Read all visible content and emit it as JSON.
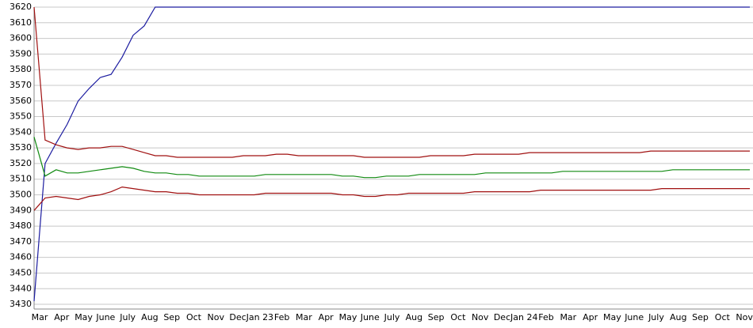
{
  "chart_data": {
    "type": "line",
    "categories": [
      "Mar",
      null,
      "Apr",
      null,
      "May",
      null,
      "June",
      null,
      "July",
      null,
      "Aug",
      null,
      "Sep",
      null,
      "Oct",
      null,
      "Nov",
      null,
      "Dec",
      null,
      "Jan 23",
      null,
      "Feb",
      null,
      "Mar",
      null,
      "Apr",
      null,
      "May",
      null,
      "June",
      null,
      "July",
      null,
      "Aug",
      null,
      "Sep",
      null,
      "Oct",
      null,
      "Nov",
      null,
      "Dec",
      null,
      "Jan 24",
      null,
      "Feb",
      null,
      "Mar",
      null,
      "Apr",
      null,
      "May",
      null,
      "June",
      null,
      "July",
      null,
      "Aug",
      null,
      "Sep",
      null,
      "Oct",
      null,
      "Nov",
      null
    ],
    "series": [
      {
        "color": "#1c1ca0",
        "values": [
          3432,
          3520,
          3533,
          3545,
          3560,
          3568,
          3575,
          3577,
          3588,
          3602,
          3608,
          3620,
          3620,
          3620,
          3620,
          3620,
          3620,
          3620,
          3620,
          3620,
          3620,
          3620,
          3620,
          3620,
          3620,
          3620,
          3620,
          3620,
          3620,
          3620,
          3620,
          3620,
          3620,
          3620,
          3620,
          3620,
          3620,
          3620,
          3620,
          3620,
          3620,
          3620,
          3620,
          3620,
          3620,
          3620,
          3620,
          3620,
          3620,
          3620,
          3620,
          3620,
          3620,
          3620,
          3620,
          3620,
          3620,
          3620,
          3620,
          3620,
          3620,
          3620,
          3620,
          3620,
          3620,
          3620
        ]
      },
      {
        "color": "#a01010",
        "values": [
          3620,
          3535,
          3532,
          3530,
          3529,
          3530,
          3530,
          3531,
          3531,
          3529,
          3527,
          3525,
          3525,
          3524,
          3524,
          3524,
          3524,
          3524,
          3524,
          3525,
          3525,
          3525,
          3526,
          3526,
          3525,
          3525,
          3525,
          3525,
          3525,
          3525,
          3524,
          3524,
          3524,
          3524,
          3524,
          3524,
          3525,
          3525,
          3525,
          3525,
          3526,
          3526,
          3526,
          3526,
          3526,
          3527,
          3527,
          3527,
          3527,
          3527,
          3527,
          3527,
          3527,
          3527,
          3527,
          3527,
          3528,
          3528,
          3528,
          3528,
          3528,
          3528,
          3528,
          3528,
          3528,
          3528
        ]
      },
      {
        "color": "#108a10",
        "values": [
          3537,
          3512,
          3516,
          3514,
          3514,
          3515,
          3516,
          3517,
          3518,
          3517,
          3515,
          3514,
          3514,
          3513,
          3513,
          3512,
          3512,
          3512,
          3512,
          3512,
          3512,
          3513,
          3513,
          3513,
          3513,
          3513,
          3513,
          3513,
          3512,
          3512,
          3511,
          3511,
          3512,
          3512,
          3512,
          3513,
          3513,
          3513,
          3513,
          3513,
          3513,
          3514,
          3514,
          3514,
          3514,
          3514,
          3514,
          3514,
          3515,
          3515,
          3515,
          3515,
          3515,
          3515,
          3515,
          3515,
          3515,
          3515,
          3516,
          3516,
          3516,
          3516,
          3516,
          3516,
          3516,
          3516
        ]
      },
      {
        "color": "#a01010",
        "values": [
          3490,
          3498,
          3499,
          3498,
          3497,
          3499,
          3500,
          3502,
          3505,
          3504,
          3503,
          3502,
          3502,
          3501,
          3501,
          3500,
          3500,
          3500,
          3500,
          3500,
          3500,
          3501,
          3501,
          3501,
          3501,
          3501,
          3501,
          3501,
          3500,
          3500,
          3499,
          3499,
          3500,
          3500,
          3501,
          3501,
          3501,
          3501,
          3501,
          3501,
          3502,
          3502,
          3502,
          3502,
          3502,
          3502,
          3503,
          3503,
          3503,
          3503,
          3503,
          3503,
          3503,
          3503,
          3503,
          3503,
          3503,
          3504,
          3504,
          3504,
          3504,
          3504,
          3504,
          3504,
          3504,
          3504
        ]
      }
    ],
    "ylim": [
      3427,
      3620
    ],
    "yticks": [
      3430,
      3440,
      3450,
      3460,
      3470,
      3480,
      3490,
      3500,
      3510,
      3520,
      3530,
      3540,
      3550,
      3560,
      3570,
      3580,
      3590,
      3600,
      3610,
      3620
    ],
    "grid": true
  }
}
